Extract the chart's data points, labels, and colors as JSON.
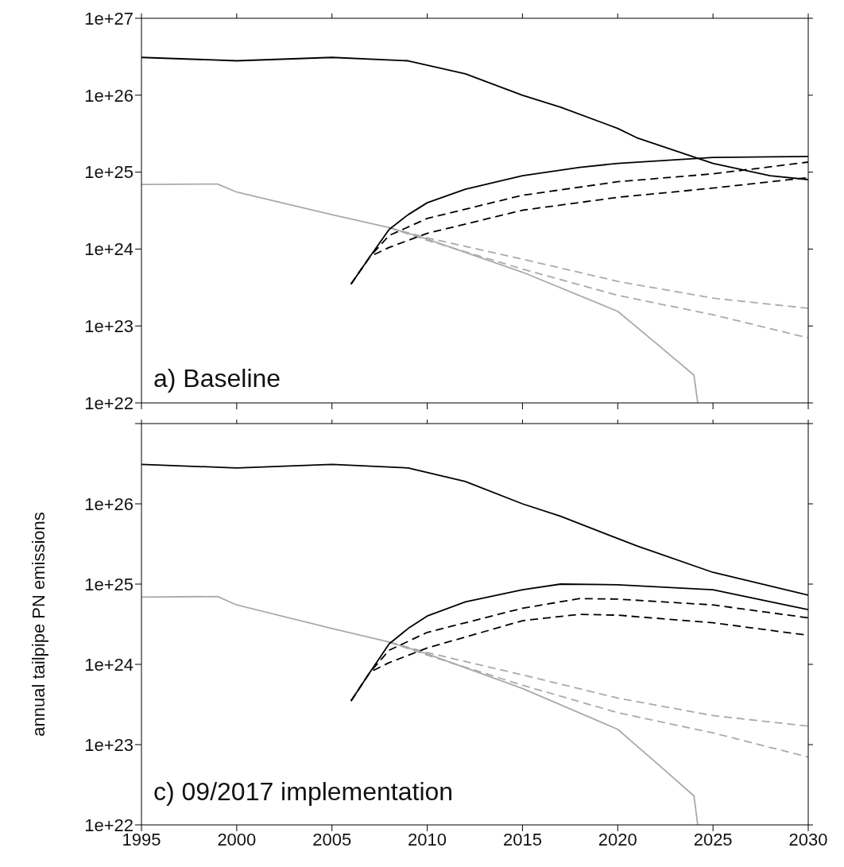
{
  "chart_data": [
    {
      "type": "line",
      "annotations": [
        "a) Baseline"
      ],
      "xlim": [
        1995,
        2030
      ],
      "xticks": [
        {
          "value": 1995,
          "label": null
        },
        {
          "value": 2000,
          "label": null
        },
        {
          "value": 2005,
          "label": null
        },
        {
          "value": 2010,
          "label": null
        },
        {
          "value": 2015,
          "label": null
        },
        {
          "value": 2020,
          "label": null
        },
        {
          "value": 2025,
          "label": null
        },
        {
          "value": 2030,
          "label": null
        }
      ],
      "ylim": [
        1e+22,
        1e+27
      ],
      "yticks": [
        {
          "value": 1e+22,
          "label": "1e+22"
        },
        {
          "value": 1e+23,
          "label": "1e+23"
        },
        {
          "value": 1e+24,
          "label": "1e+24"
        },
        {
          "value": 1e+25,
          "label": "1e+25"
        },
        {
          "value": 1e+26,
          "label": "1e+26"
        },
        {
          "value": 1e+27,
          "label": "1e+27"
        }
      ],
      "log": "y",
      "tick_labels": "y",
      "grid": false,
      "legend": false,
      "marker": "none",
      "series": [
        {
          "color": "#000000",
          "line_style": "solid",
          "x": [
            1995,
            2000,
            2005,
            2009,
            2012,
            2015,
            2017,
            2020,
            2021,
            2025,
            2028,
            2030
          ],
          "values": [
            3.1e+26,
            2.8e+26,
            3.1e+26,
            2.8e+26,
            1.9e+26,
            1e+26,
            7e+25,
            3.7e+25,
            2.8e+25,
            1.3e+25,
            9e+24,
            8e+24
          ]
        },
        {
          "color": "#aaaaaa",
          "line_style": "solid",
          "x": [
            1995,
            1999,
            2000,
            2005,
            2008,
            2010,
            2015,
            2020,
            2022,
            2024,
            2024.2
          ],
          "values": [
            6.9e+24,
            7e+24,
            5.5e+24,
            2.8e+24,
            1.9e+24,
            1.35e+24,
            5e+23,
            1.55e+23,
            6e+22,
            2.3e+22,
            1e+22
          ]
        },
        {
          "color": "#aaaaaa",
          "line_style": "dashed",
          "x": [
            2008,
            2010,
            2015,
            2020,
            2025,
            2030
          ],
          "values": [
            1.9e+24,
            1.4e+24,
            7.4e+23,
            3.8e+23,
            2.3e+23,
            1.7e+23
          ]
        },
        {
          "color": "#aaaaaa",
          "line_style": "dashed",
          "x": [
            2008,
            2010,
            2015,
            2020,
            2025,
            2030
          ],
          "values": [
            1.9e+24,
            1.3e+24,
            5.5e+23,
            2.5e+23,
            1.4e+23,
            7e+22
          ]
        },
        {
          "color": "#000000",
          "line_style": "solid",
          "x": [
            2006,
            2007,
            2008,
            2009,
            2010,
            2012,
            2015,
            2018,
            2020,
            2025,
            2030
          ],
          "values": [
            3.5e+23,
            8e+23,
            1.8e+24,
            2.8e+24,
            4e+24,
            6e+24,
            9e+24,
            1.15e+25,
            1.3e+25,
            1.55e+25,
            1.6e+25
          ]
        },
        {
          "color": "#000000",
          "line_style": "dashed",
          "x": [
            2006,
            2007,
            2008,
            2010,
            2015,
            2020,
            2025,
            2030
          ],
          "values": [
            3.5e+23,
            8e+23,
            1.5e+24,
            2.5e+24,
            5e+24,
            7.5e+24,
            9.5e+24,
            1.35e+25
          ]
        },
        {
          "color": "#000000",
          "line_style": "dashed",
          "x": [
            2006,
            2007,
            2008,
            2010,
            2015,
            2020,
            2025,
            2030
          ],
          "values": [
            3.5e+23,
            8e+23,
            1.05e+24,
            1.6e+24,
            3.2e+24,
            4.7e+24,
            6.2e+24,
            8.5e+24
          ]
        }
      ]
    },
    {
      "type": "line",
      "ylabel": "annual tailpipe PN emissions",
      "annotations": [
        "c) 09/2017 implementation"
      ],
      "xlim": [
        1995,
        2030
      ],
      "xticks": [
        1995,
        2000,
        2005,
        2010,
        2015,
        2020,
        2025,
        2030
      ],
      "ylim": [
        1e+22,
        1e+27
      ],
      "yticks": [
        {
          "value": 1e+22,
          "label": "1e+22"
        },
        {
          "value": 1e+23,
          "label": "1e+23"
        },
        {
          "value": 1e+24,
          "label": "1e+24"
        },
        {
          "value": 1e+25,
          "label": "1e+25"
        },
        {
          "value": 1e+26,
          "label": "1e+26"
        },
        {
          "value": 1e+27,
          "label": null
        }
      ],
      "log": "y",
      "grid": false,
      "legend": false,
      "marker": "none",
      "series": [
        {
          "color": "#000000",
          "line_style": "solid",
          "x": [
            1995,
            2000,
            2005,
            2009,
            2012,
            2015,
            2017,
            2020,
            2021,
            2025,
            2030
          ],
          "values": [
            3.1e+26,
            2.8e+26,
            3.1e+26,
            2.8e+26,
            1.9e+26,
            1e+26,
            7e+25,
            3.7e+25,
            3e+25,
            1.4e+25,
            7.3e+24
          ]
        },
        {
          "color": "#aaaaaa",
          "line_style": "solid",
          "x": [
            1995,
            1999,
            2000,
            2005,
            2008,
            2010,
            2015,
            2020,
            2022,
            2024,
            2024.2
          ],
          "values": [
            6.9e+24,
            7e+24,
            5.5e+24,
            2.8e+24,
            1.9e+24,
            1.35e+24,
            5e+23,
            1.55e+23,
            6e+22,
            2.3e+22,
            1e+22
          ]
        },
        {
          "color": "#aaaaaa",
          "line_style": "dashed",
          "x": [
            2008,
            2010,
            2015,
            2020,
            2025,
            2030
          ],
          "values": [
            1.9e+24,
            1.4e+24,
            7.4e+23,
            3.8e+23,
            2.3e+23,
            1.7e+23
          ]
        },
        {
          "color": "#aaaaaa",
          "line_style": "dashed",
          "x": [
            2008,
            2010,
            2015,
            2020,
            2025,
            2030
          ],
          "values": [
            1.9e+24,
            1.3e+24,
            5.5e+23,
            2.5e+23,
            1.4e+23,
            7e+22
          ]
        },
        {
          "color": "#000000",
          "line_style": "solid",
          "x": [
            2006,
            2007,
            2008,
            2009,
            2010,
            2012,
            2015,
            2017,
            2020,
            2025,
            2030
          ],
          "values": [
            3.5e+23,
            8e+23,
            1.8e+24,
            2.8e+24,
            4e+24,
            6e+24,
            8.5e+24,
            1e+25,
            9.8e+24,
            8.5e+24,
            4.8e+24
          ]
        },
        {
          "color": "#000000",
          "line_style": "dashed",
          "x": [
            2006,
            2007,
            2008,
            2010,
            2015,
            2018,
            2020,
            2025,
            2030
          ],
          "values": [
            3.5e+23,
            8e+23,
            1.5e+24,
            2.5e+24,
            5e+24,
            6.6e+24,
            6.5e+24,
            5.5e+24,
            3.8e+24
          ]
        },
        {
          "color": "#000000",
          "line_style": "dashed",
          "x": [
            2006,
            2007,
            2008,
            2010,
            2015,
            2018,
            2020,
            2025,
            2030
          ],
          "values": [
            3.5e+23,
            8e+23,
            1.05e+24,
            1.6e+24,
            3.5e+24,
            4.2e+24,
            4.1e+24,
            3.3e+24,
            2.3e+24
          ]
        }
      ]
    }
  ]
}
